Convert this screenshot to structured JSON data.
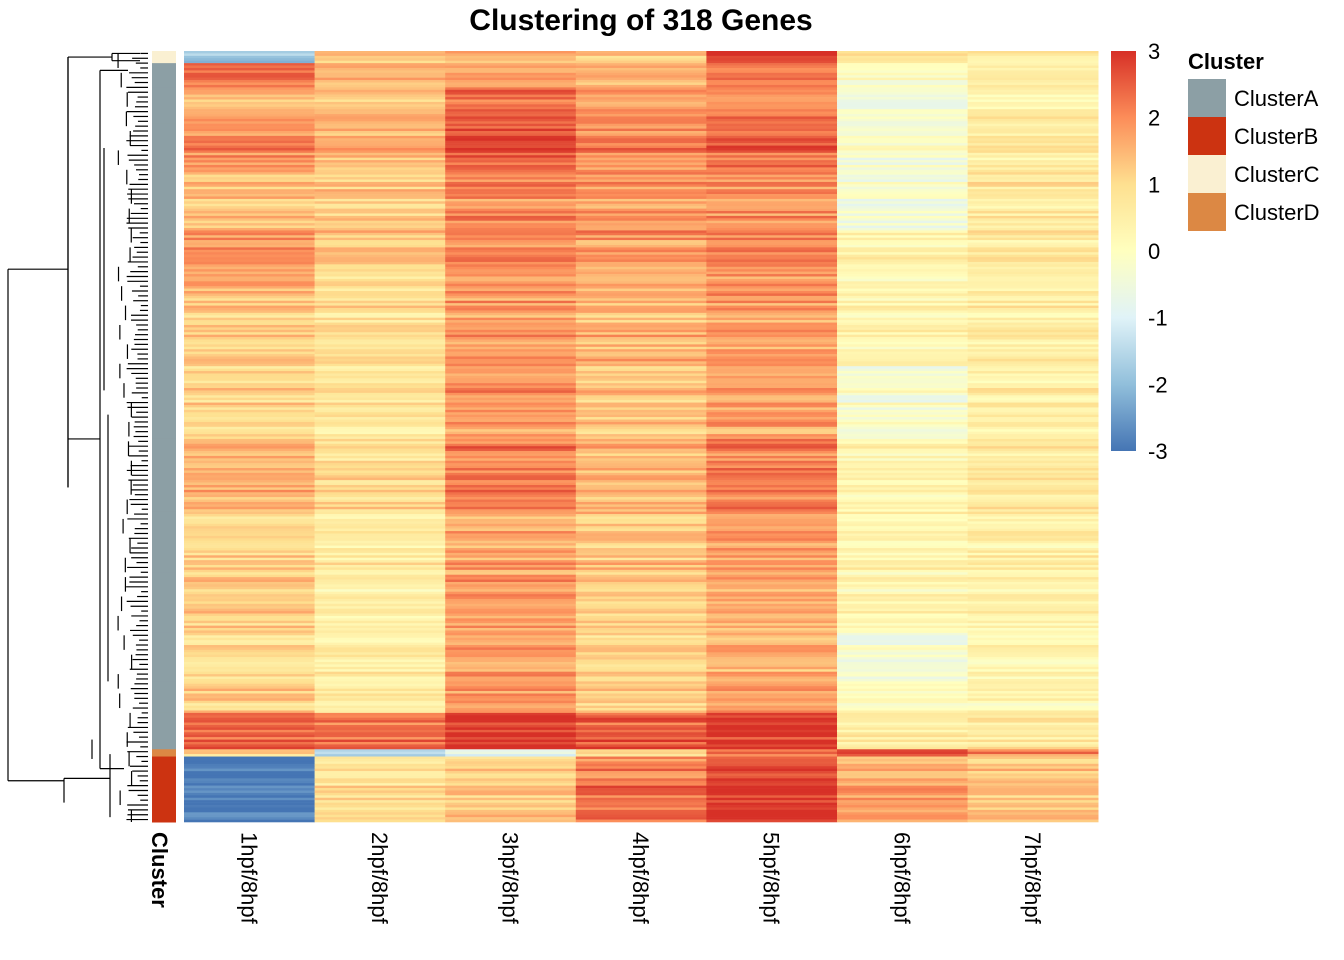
{
  "chart_data": {
    "type": "heatmap",
    "title": "Clustering of 318 Genes",
    "columns": [
      "1hpf/8hpf",
      "2hpf/8hpf",
      "3hpf/8hpf",
      "4hpf/8hpf",
      "5hpf/8hpf",
      "6hpf/8hpf",
      "7hpf/8hpf"
    ],
    "n_rows": 318,
    "annotation_label": "Cluster",
    "color_scale": {
      "min": -3,
      "max": 3,
      "ticks": [
        3,
        2,
        1,
        0,
        -1,
        -2,
        -3
      ],
      "stops": [
        "#4575B4",
        "#91BFDB",
        "#E0F3F8",
        "#FFFFBF",
        "#FEE090",
        "#FC8D59",
        "#D73027"
      ]
    },
    "legend": {
      "title": "Cluster",
      "placement": "right",
      "items": [
        {
          "name": "ClusterA",
          "color": "#8C9FA5"
        },
        {
          "name": "ClusterB",
          "color": "#CC3311"
        },
        {
          "name": "ClusterC",
          "color": "#FAF0D2"
        },
        {
          "name": "ClusterD",
          "color": "#DC8844"
        }
      ]
    },
    "row_blocks": [
      {
        "cluster": "ClusterC",
        "rows": 5,
        "values": [
          -1.8,
          1.3,
          1.5,
          1.3,
          3.0,
          0.9,
          0.7
        ]
      },
      {
        "cluster": "ClusterA",
        "rows": 10,
        "values": [
          2.4,
          1.6,
          1.8,
          1.6,
          2.2,
          0.0,
          0.6
        ]
      },
      {
        "cluster": "ClusterA",
        "rows": 15,
        "values": [
          1.6,
          1.4,
          2.4,
          1.9,
          2.0,
          -0.4,
          0.4
        ]
      },
      {
        "cluster": "ClusterA",
        "rows": 20,
        "values": [
          2.0,
          1.5,
          2.6,
          2.0,
          2.4,
          -0.2,
          0.7
        ]
      },
      {
        "cluster": "ClusterA",
        "rows": 25,
        "values": [
          1.4,
          1.2,
          2.0,
          1.8,
          1.9,
          -0.4,
          0.6
        ]
      },
      {
        "cluster": "ClusterA",
        "rows": 25,
        "values": [
          1.8,
          1.1,
          2.0,
          1.7,
          2.0,
          0.3,
          0.6
        ]
      },
      {
        "cluster": "ClusterA",
        "rows": 30,
        "values": [
          1.2,
          0.9,
          1.8,
          1.5,
          1.8,
          0.3,
          0.5
        ]
      },
      {
        "cluster": "ClusterA",
        "rows": 30,
        "values": [
          1.1,
          0.8,
          1.9,
          1.3,
          1.8,
          -0.2,
          0.5
        ]
      },
      {
        "cluster": "ClusterA",
        "rows": 30,
        "values": [
          1.5,
          0.9,
          2.1,
          1.4,
          2.1,
          0.2,
          0.6
        ]
      },
      {
        "cluster": "ClusterA",
        "rows": 25,
        "values": [
          1.1,
          0.6,
          1.7,
          1.3,
          1.8,
          0.3,
          0.5
        ]
      },
      {
        "cluster": "ClusterA",
        "rows": 25,
        "values": [
          1.2,
          0.5,
          1.8,
          1.2,
          1.6,
          0.3,
          0.4
        ]
      },
      {
        "cluster": "ClusterA",
        "rows": 20,
        "values": [
          0.9,
          0.6,
          1.8,
          1.1,
          1.6,
          -0.3,
          0.3
        ]
      },
      {
        "cluster": "ClusterA",
        "rows": 13,
        "values": [
          1.2,
          0.6,
          1.9,
          1.3,
          1.8,
          0.1,
          0.3
        ]
      },
      {
        "cluster": "ClusterA",
        "rows": 15,
        "values": [
          2.4,
          2.2,
          2.8,
          2.4,
          2.8,
          0.5,
          0.6
        ]
      },
      {
        "cluster": "ClusterD",
        "rows": 3,
        "values": [
          1.0,
          -1.8,
          -1.0,
          1.0,
          2.0,
          2.5,
          2.0
        ]
      },
      {
        "cluster": "ClusterB",
        "rows": 27,
        "values": [
          -3.0,
          0.8,
          1.2,
          2.2,
          2.8,
          1.6,
          1.3
        ]
      }
    ]
  }
}
